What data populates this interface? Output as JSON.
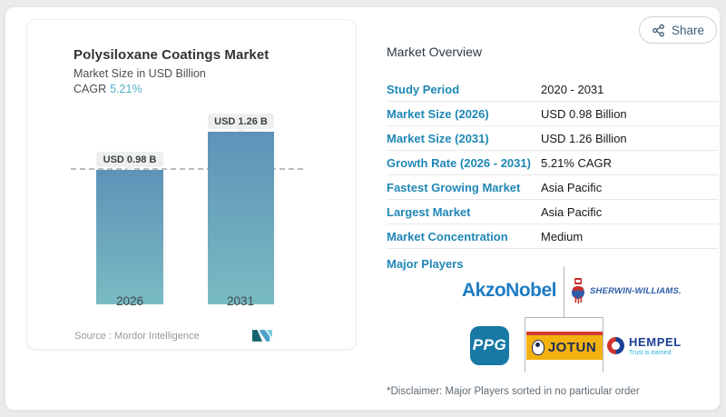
{
  "share": {
    "label": "Share",
    "icon": "share-nodes"
  },
  "chart_card": {
    "title": "Polysiloxane Coatings Market",
    "subtitle": "Market Size in USD Billion",
    "cagr_label": "CAGR",
    "cagr_value": "5.21%",
    "source_label": "Source :",
    "source_value": "Mordor Intelligence",
    "logo": "mordor-intelligence-mark"
  },
  "chart_data": {
    "type": "bar",
    "categories": [
      "2026",
      "2031"
    ],
    "values": [
      0.98,
      1.26
    ],
    "value_labels": [
      "USD 0.98 B",
      "USD 1.26 B"
    ],
    "title": "Polysiloxane Coatings Market",
    "xlabel": "",
    "ylabel": "Market Size in USD Billion",
    "ylim": [
      0,
      1.26
    ],
    "grid": "off",
    "reference_line": "dashed horizontal line at 0.98 (2026 value)",
    "bar_gradient": [
      "#5E92B8",
      "#79BBC2"
    ],
    "legend": "none"
  },
  "overview": {
    "heading": "Market Overview",
    "rows": [
      {
        "label": "Study Period",
        "value": "2020 - 2031"
      },
      {
        "label": "Market Size (2026)",
        "value": "USD 0.98 Billion"
      },
      {
        "label": "Market Size (2031)",
        "value": "USD 1.26 Billion"
      },
      {
        "label": "Growth Rate (2026 - 2031)",
        "value": "5.21% CAGR"
      },
      {
        "label": "Fastest Growing Market",
        "value": "Asia Pacific"
      },
      {
        "label": "Largest Market",
        "value": "Asia Pacific"
      },
      {
        "label": "Market Concentration",
        "value": "Medium"
      }
    ],
    "major_players_label": "Major Players",
    "major_players": [
      "AkzoNobel",
      "Sherwin-Williams",
      "PPG",
      "Jotun",
      "Hempel"
    ],
    "disclaimer": "*Disclaimer: Major Players sorted in no particular order"
  },
  "logos": {
    "akzonobel": {
      "text": "AkzoNobel"
    },
    "sherwin": {
      "text": "SHERWIN-WILLIAMS."
    },
    "ppg": {
      "text": "PPG"
    },
    "jotun": {
      "text": "JOTUN"
    },
    "hempel": {
      "text": "HEMPEL",
      "tagline": "Trust is earned"
    }
  },
  "colors": {
    "accent_teal": "#4FB0C4",
    "row_label_blue": "#1F87B6",
    "bar_top": "#5E92B8",
    "bar_bottom": "#79BBC2",
    "chip_bg": "#EEF0EF",
    "page_bg": "#E9EBED"
  }
}
